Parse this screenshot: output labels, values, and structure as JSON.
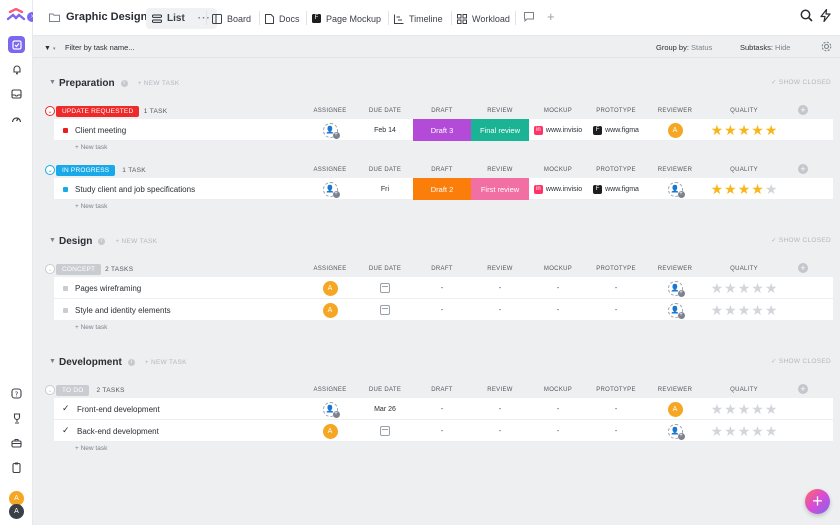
{
  "colors": {
    "accent": "#7b68ee",
    "orange": "#f5a623",
    "star_on": "#f9b61a",
    "star_off": "#d2d5da"
  },
  "workspace": {
    "title": "Graphic Design"
  },
  "tabs": [
    {
      "label": "List",
      "icon": "list-icon",
      "active": true
    },
    {
      "label": "Board",
      "icon": "board-icon"
    },
    {
      "label": "Docs",
      "icon": "docs-icon"
    },
    {
      "label": "Page Mockup",
      "icon": "figma-icon"
    },
    {
      "label": "Timeline",
      "icon": "timeline-icon"
    },
    {
      "label": "Workload",
      "icon": "workload-icon"
    }
  ],
  "filter": {
    "label": "Filter by task name...",
    "group_label": "Group by:",
    "group_value": "Status",
    "subtasks_label": "Subtasks:",
    "subtasks_value": "Hide"
  },
  "common": {
    "new_task_header": "+ NEW TASK",
    "show_closed": "✓ SHOW CLOSED",
    "new_task": "+ New task"
  },
  "columns": [
    "ASSIGNEE",
    "DUE DATE",
    "DRAFT",
    "REVIEW",
    "MOCKUP",
    "PROTOTYPE",
    "REVIEWER",
    "QUALITY"
  ],
  "sections": [
    {
      "title": "Preparation",
      "groups": [
        {
          "status": "UPDATE REQUESTED",
          "color": "#ef2a2a",
          "count": "1 TASK",
          "tasks": [
            {
              "name": "Client meeting",
              "marker": "#e91e1e",
              "assignee": "ghost",
              "due": "Feb 14",
              "draft": {
                "text": "Draft 3",
                "color": "#b44bd8"
              },
              "review": {
                "text": "Final review",
                "color": "#1ab394"
              },
              "mockup": "www.invisio",
              "prototype": "www.figma",
              "reviewer": "A",
              "quality": 5
            }
          ]
        },
        {
          "status": "IN PROGRESS",
          "color": "#1aa9e8",
          "count": "1 TASK",
          "tasks": [
            {
              "name": "Study client and job specifications",
              "marker": "#1aa9e8",
              "assignee": "ghost",
              "due": "Fri",
              "draft": {
                "text": "Draft 2",
                "color": "#fb7e0b"
              },
              "review": {
                "text": "First review",
                "color": "#f16fa3"
              },
              "mockup": "www.invisio",
              "prototype": "www.figma",
              "reviewer": "ghost",
              "quality": 4
            }
          ]
        }
      ]
    },
    {
      "title": "Design",
      "groups": [
        {
          "status": "CONCEPT",
          "color": "#c9ccd1",
          "count": "2 TASKS",
          "tasks": [
            {
              "name": "Pages wireframing",
              "marker": "#c9ccd1",
              "assignee": "A",
              "due": "cal",
              "draft": "-",
              "review": "-",
              "mockup": "-",
              "prototype": "-",
              "reviewer": "ghost",
              "quality": 0
            },
            {
              "name": "Style and identity elements",
              "marker": "#c9ccd1",
              "assignee": "A",
              "due": "cal",
              "draft": "-",
              "review": "-",
              "mockup": "-",
              "prototype": "-",
              "reviewer": "ghost",
              "quality": 0
            }
          ]
        }
      ]
    },
    {
      "title": "Development",
      "groups": [
        {
          "status": "TO DO",
          "color": "#c9ccd1",
          "count": "2 TASKS",
          "tasks": [
            {
              "name": "Front-end development",
              "check": true,
              "assignee": "ghost",
              "due": "Mar 26",
              "draft": "-",
              "review": "-",
              "mockup": "-",
              "prototype": "-",
              "reviewer": "A",
              "quality": 0
            },
            {
              "name": "Back-end development",
              "check": true,
              "assignee": "A",
              "due": "cal",
              "draft": "-",
              "review": "-",
              "mockup": "-",
              "prototype": "-",
              "reviewer": "ghost",
              "quality": 0
            }
          ]
        }
      ]
    }
  ],
  "user": {
    "avatar": "A",
    "avatar2": "A"
  }
}
